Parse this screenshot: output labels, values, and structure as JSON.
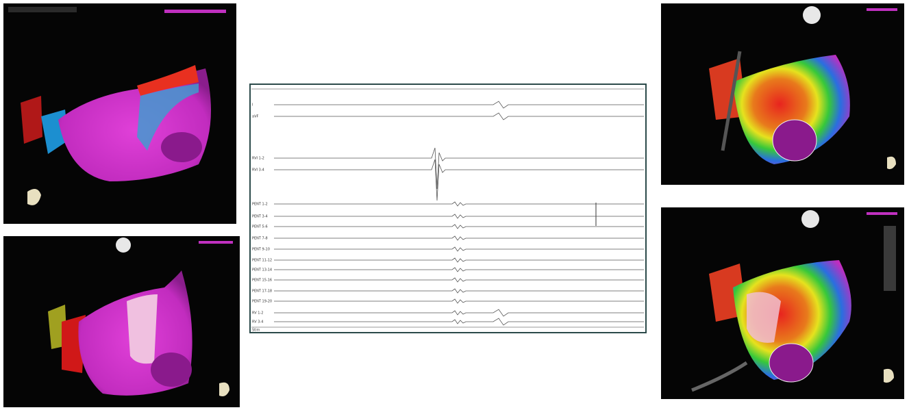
{
  "egm": {
    "channels": [
      "I",
      "aVF",
      "RVI 1-2",
      "RVI 3-4",
      "PENT 1-2",
      "PENT 3-4",
      "PENT 5-6",
      "PENT 7-8",
      "PENT 9-10",
      "PENT 11-12",
      "PENT 13-14",
      "PENT 15-16",
      "PENT 17-18",
      "PENT 19-20",
      "RV 1-2",
      "RV 3-4",
      "Stim"
    ]
  }
}
